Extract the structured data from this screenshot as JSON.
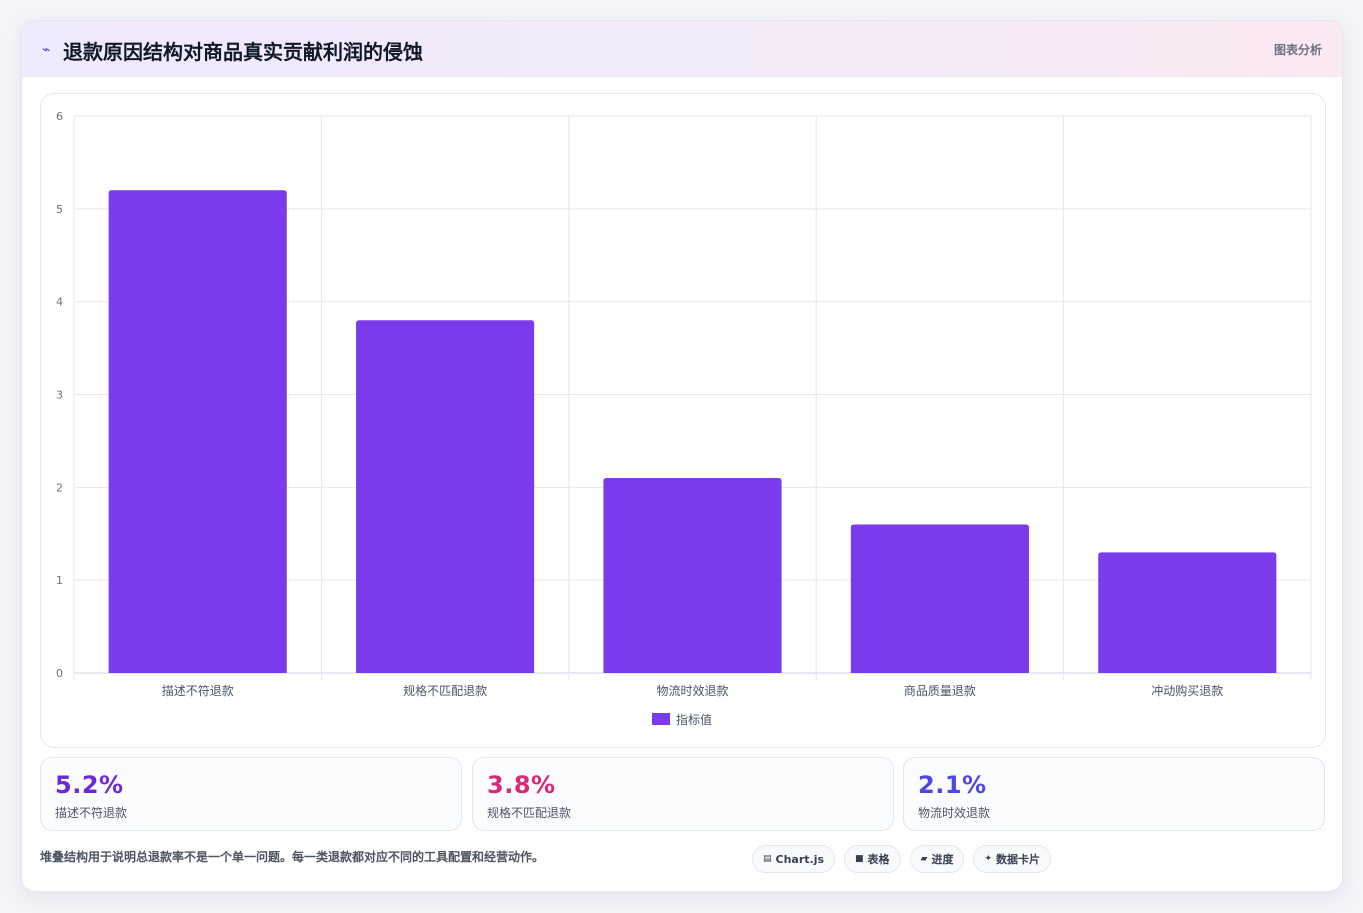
{
  "header": {
    "icon": "chart-line-icon",
    "title": "退款原因结构对商品真实贡献利润的侵蚀",
    "tag": "图表分析"
  },
  "chart_data": {
    "type": "bar",
    "categories": [
      "描述不符退款",
      "规格不匹配退款",
      "物流时效退款",
      "商品质量退款",
      "冲动购买退款"
    ],
    "series": [
      {
        "name": "指标值",
        "values": [
          5.2,
          3.8,
          2.1,
          1.6,
          1.3
        ],
        "color": "#7c3aed"
      }
    ],
    "ylim": [
      0,
      6
    ],
    "yticks": [
      0,
      1,
      2,
      3,
      4,
      5,
      6
    ],
    "grid": true,
    "legend": "bottom"
  },
  "stats": [
    {
      "value": "5.2%",
      "label": "描述不符退款",
      "color": "#6d28d9"
    },
    {
      "value": "3.8%",
      "label": "规格不匹配退款",
      "color": "#db2777"
    },
    {
      "value": "2.1%",
      "label": "物流时效退款",
      "color": "#4f46e5"
    }
  ],
  "footnote": "堆叠结构用于说明总退款率不是一个单一问题。每一类退款都对应不同的工具配置和经营动作。",
  "chips": [
    {
      "icon": "▤",
      "label": "Chart.js"
    },
    {
      "icon": "■",
      "label": "表格"
    },
    {
      "icon": "▰",
      "label": "进度"
    },
    {
      "icon": "✦",
      "label": "数据卡片"
    }
  ]
}
